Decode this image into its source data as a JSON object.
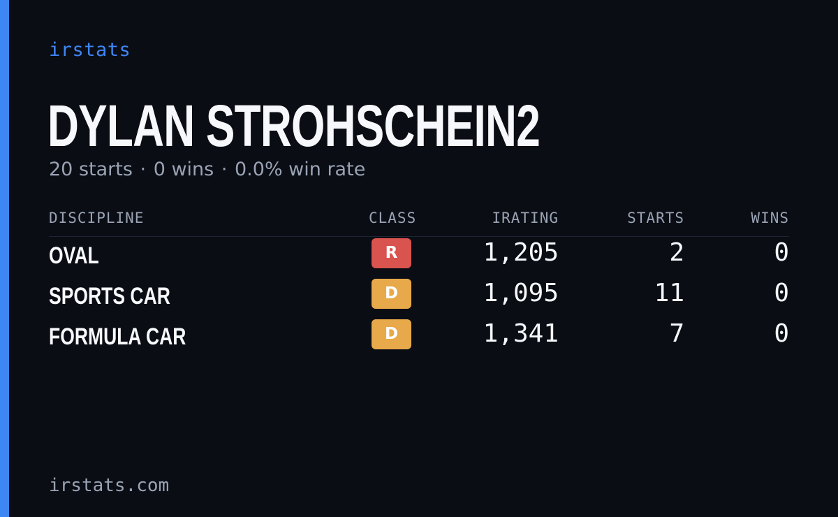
{
  "brand": "irstats",
  "driver": {
    "name": "DYLAN STROHSCHEIN2"
  },
  "summary": {
    "starts": "20 starts",
    "wins": "0 wins",
    "win_rate": "0.0% win rate",
    "separator": "·"
  },
  "table": {
    "headers": {
      "discipline": "DISCIPLINE",
      "class": "CLASS",
      "irating": "IRATING",
      "starts": "STARTS",
      "wins": "WINS"
    },
    "rows": [
      {
        "discipline": "OVAL",
        "class": "R",
        "class_color": "#d9534f",
        "irating": "1,205",
        "starts": "2",
        "wins": "0"
      },
      {
        "discipline": "SPORTS CAR",
        "class": "D",
        "class_color": "#e8a94a",
        "irating": "1,095",
        "starts": "11",
        "wins": "0"
      },
      {
        "discipline": "FORMULA CAR",
        "class": "D",
        "class_color": "#e8a94a",
        "irating": "1,341",
        "starts": "7",
        "wins": "0"
      }
    ]
  },
  "footer": "irstats.com",
  "colors": {
    "accent": "#3f86f5",
    "background": "#0a0d14",
    "muted_text": "#9aa3b4"
  }
}
